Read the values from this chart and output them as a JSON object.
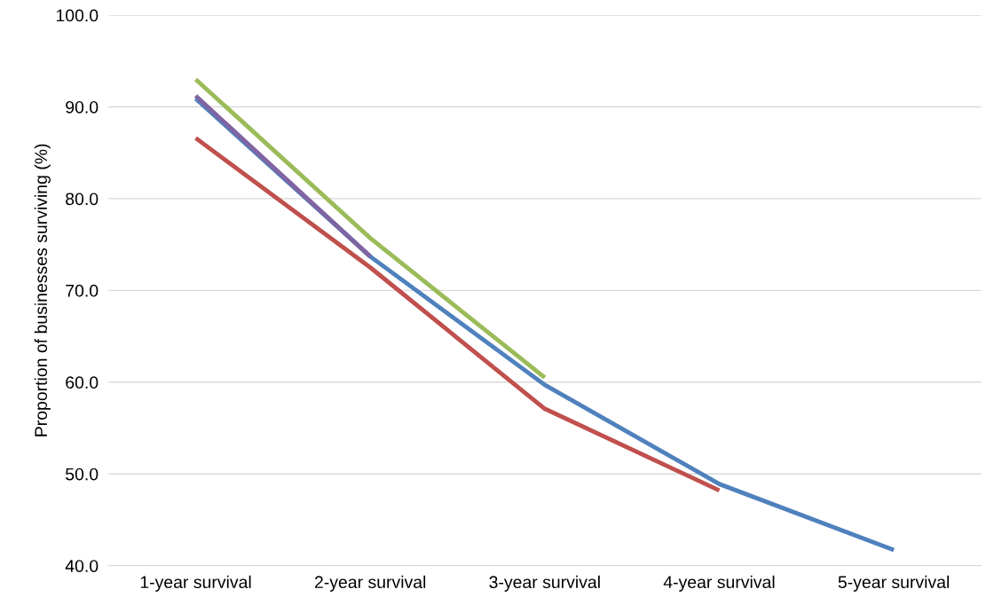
{
  "chart_data": {
    "type": "line",
    "ylabel": "Proportion of businesses surviving (%)",
    "categories": [
      "1-year survival",
      "2-year survival",
      "3-year survival",
      "4-year survival",
      "5-year survival"
    ],
    "series": [
      {
        "color": "#4f81bd",
        "values": [
          90.9,
          73.7,
          59.7,
          48.9,
          41.7
        ]
      },
      {
        "color": "#c0504d",
        "values": [
          86.6,
          72.5,
          57.1,
          48.2,
          null
        ]
      },
      {
        "color": "#9bbb59",
        "values": [
          93.0,
          75.7,
          60.5,
          null,
          null
        ]
      },
      {
        "color": "#8064a2",
        "values": [
          91.2,
          73.7,
          null,
          null,
          null
        ]
      }
    ],
    "ylim": [
      40,
      100
    ],
    "yticks": [
      {
        "value": 40,
        "label": "40.0"
      },
      {
        "value": 50,
        "label": "50.0"
      },
      {
        "value": 60,
        "label": "60.0"
      },
      {
        "value": 70,
        "label": "70.0"
      },
      {
        "value": 80,
        "label": "80.0"
      },
      {
        "value": 90,
        "label": "90.0"
      },
      {
        "value": 100,
        "label": "100.0"
      }
    ],
    "grid": "y",
    "marker": "none",
    "line_style": "solid"
  }
}
